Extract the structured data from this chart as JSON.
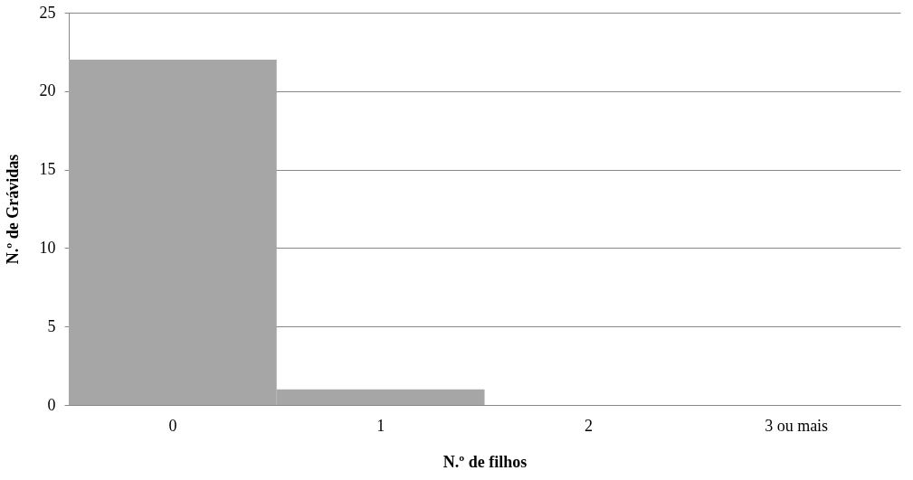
{
  "chart_data": {
    "type": "bar",
    "xlabel": "N.º de filhos",
    "ylabel": "N.º de Grávidas",
    "categories": [
      "0",
      "1",
      "2",
      "3 ou mais"
    ],
    "values": [
      22,
      1,
      0,
      0
    ],
    "color": "#a6a6a6",
    "ylim": [
      0,
      25
    ],
    "yticks": [
      0,
      5,
      10,
      15,
      20,
      25
    ],
    "grid": "y"
  }
}
